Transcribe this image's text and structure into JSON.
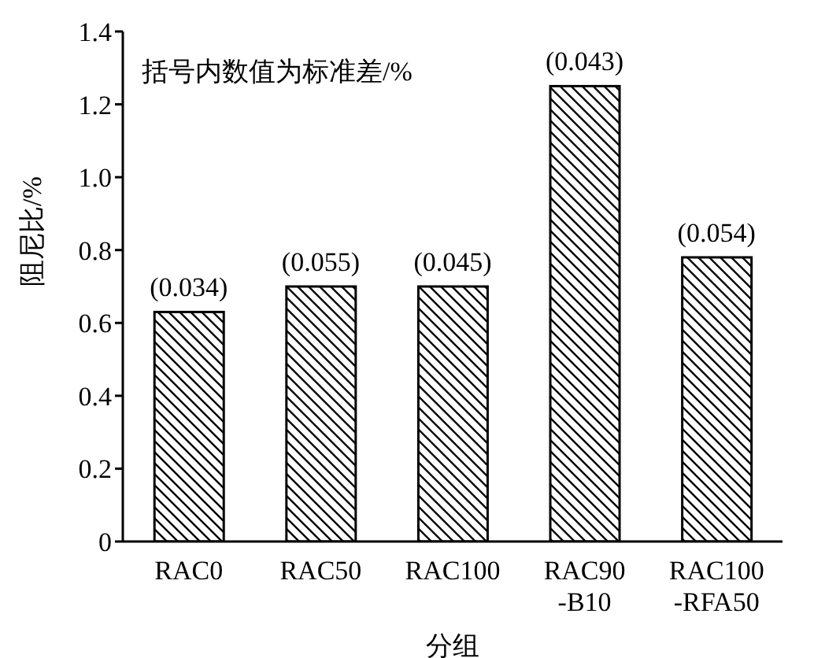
{
  "chart_data": {
    "type": "bar",
    "xlabel": "分组",
    "ylabel": "阻尼比/%",
    "annotations": [
      "括号内数值为标准差/%",
      {
        "text": "(0.034)",
        "x": "RAC0",
        "y": 0.63
      },
      {
        "text": "(0.055)",
        "x": "RAC50",
        "y": 0.7
      },
      {
        "text": "(0.045)",
        "x": "RAC100",
        "y": 0.7
      },
      {
        "text": "(0.043)",
        "x": "RAC90-B10",
        "y": 1.25
      },
      {
        "text": "(0.054)",
        "x": "RAC100-RFA50",
        "y": 0.78
      }
    ],
    "categories": [
      "RAC0",
      "RAC50",
      "RAC100",
      "RAC90-B10",
      "RAC100-RFA50"
    ],
    "values": [
      0.63,
      0.7,
      0.7,
      1.25,
      0.78
    ],
    "color": "#000000",
    "ylim": [
      0,
      1.4
    ],
    "yticks": [
      0,
      0.2,
      0.4,
      0.6,
      0.8,
      {
        "value": 1,
        "label": "1.0"
      },
      1.2,
      1.4
    ]
  }
}
